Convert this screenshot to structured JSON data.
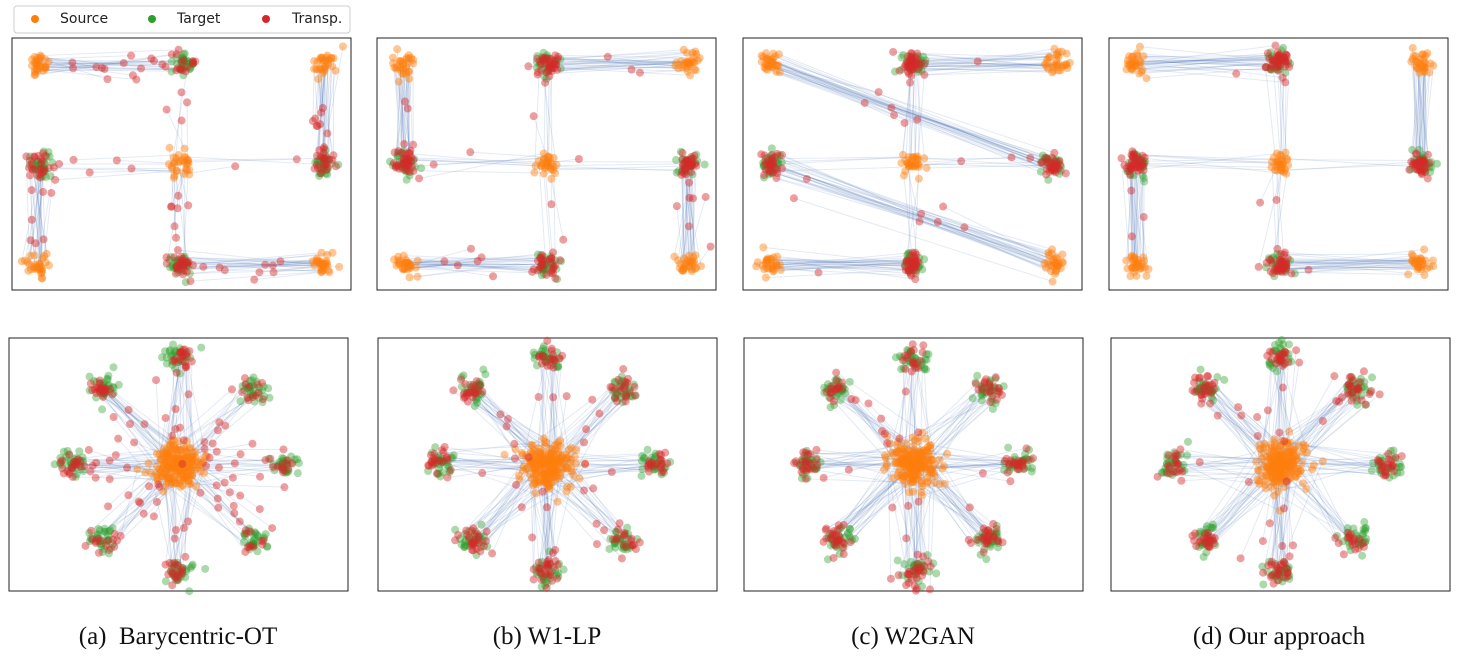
{
  "legend": {
    "items": [
      "Source",
      "Target",
      "Transp."
    ]
  },
  "captions": [
    "(a)  Barycentric-OT",
    "(b) W1-LP",
    "(c) W2GAN",
    "(d) Our approach"
  ]
}
